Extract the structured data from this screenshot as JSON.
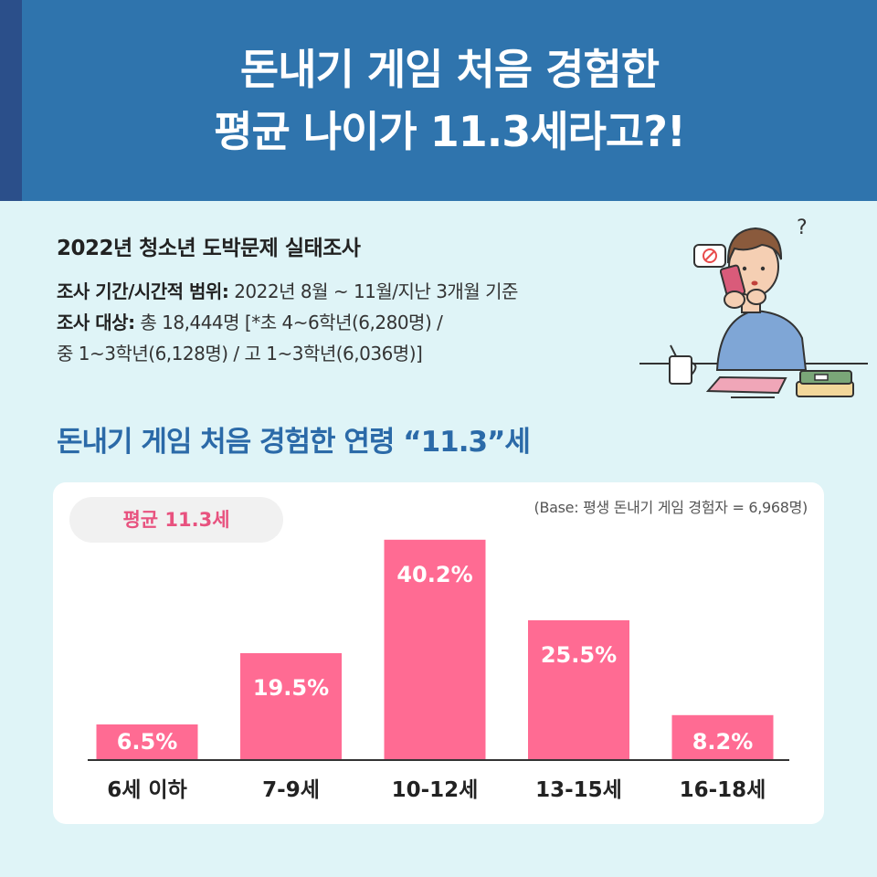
{
  "header": {
    "title_line1": "돈내기 게임 처음 경험한",
    "title_line2": "평균 나이가 11.3세라고?!"
  },
  "survey": {
    "title": "2022년 청소년 도박문제 실태조사",
    "period_label": "조사 기간/시간적 범위:",
    "period_value": " 2022년 8월 ~ 11월/지난 3개월 기준",
    "target_label": "조사 대상:",
    "target_value": " 총 18,444명 [*초 4~6학년(6,280명) /",
    "target_value2": "중 1~3학년(6,128명) / 고 1~3학년(6,036명)]"
  },
  "chart_heading": "돈내기 게임 처음 경험한 연령 “11.3”세",
  "average_label": "평균 11.3세",
  "base_note": "(Base: 평생 돈내기 게임 경험자 = 6,968명)",
  "colors": {
    "header": "#2f74ad",
    "bar": "#ff6b93",
    "heading": "#2b6aa8",
    "accent": "#e8527f"
  },
  "chart_data": {
    "type": "bar",
    "categories": [
      "6세 이하",
      "7-9세",
      "10-12세",
      "13-15세",
      "16-18세"
    ],
    "values": [
      6.5,
      19.5,
      40.2,
      25.5,
      8.2
    ],
    "value_labels": [
      "6.5%",
      "19.5%",
      "40.2%",
      "25.5%",
      "8.2%"
    ],
    "unit": "%",
    "ylim": [
      0,
      44
    ],
    "grid": false
  }
}
